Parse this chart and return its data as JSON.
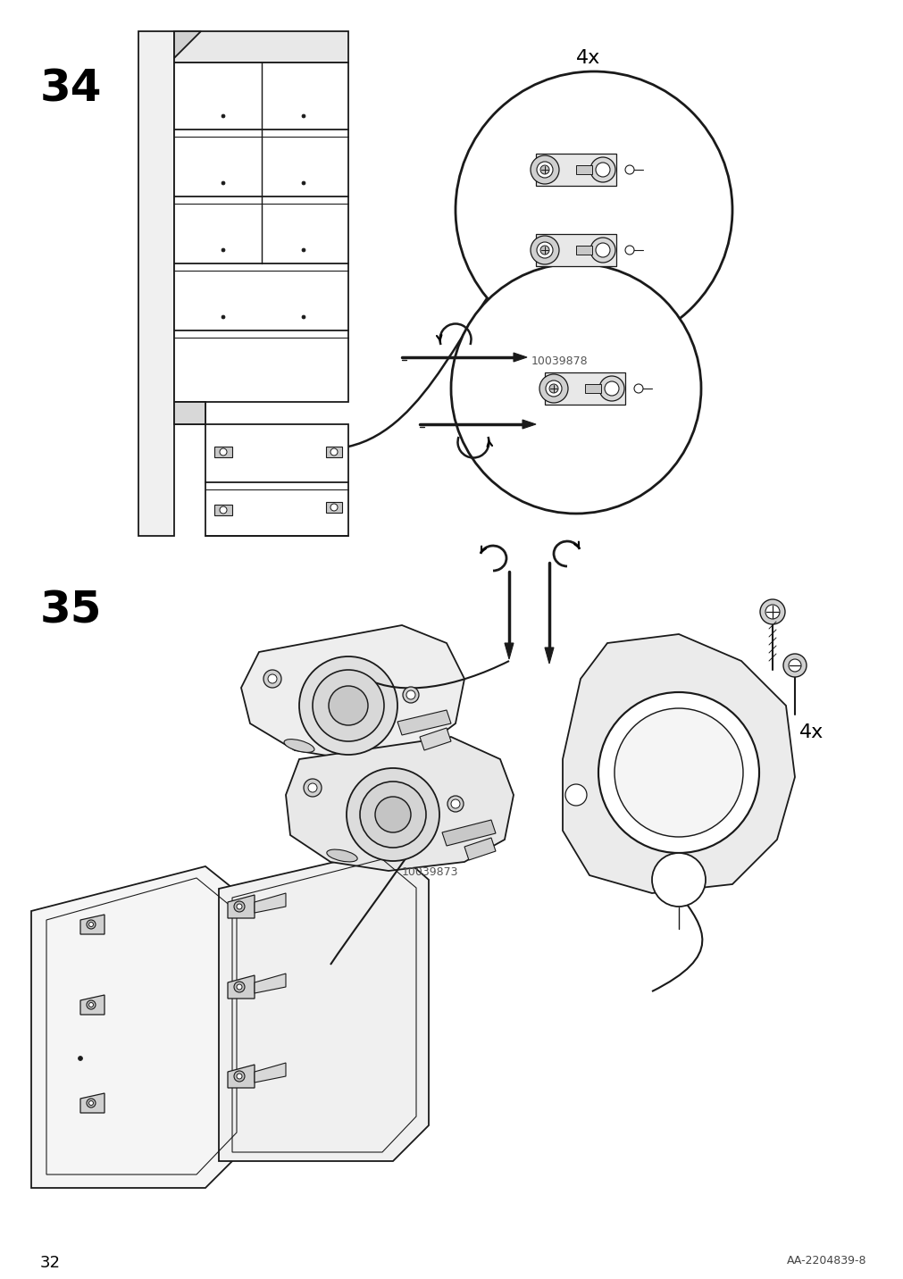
{
  "page_number": "32",
  "doc_code": "AA-2204839-8",
  "background_color": "#ffffff",
  "step_34_label": "34",
  "step_35_label": "35",
  "label_4x_top": "4x",
  "label_4x_bottom": "4x",
  "part_code_top": "10039878",
  "part_code_bottom": "10039873",
  "step_label_fontsize": 36,
  "annotation_fontsize": 16,
  "page_num_fontsize": 13,
  "doc_code_fontsize": 9,
  "line_color": "#1a1a1a",
  "lw": 1.3
}
